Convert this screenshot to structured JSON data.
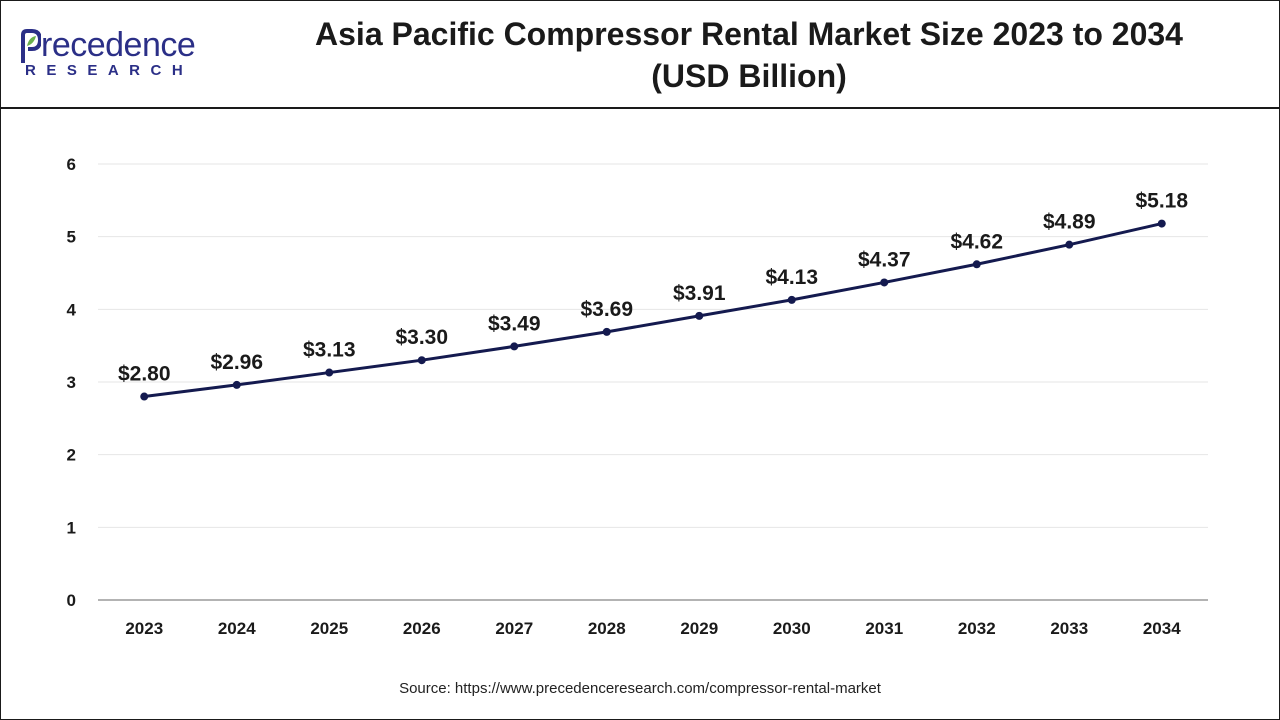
{
  "header": {
    "title_line1": "Asia Pacific Compressor Rental Market Size 2023 to 2034",
    "title_line2": "(USD Billion)"
  },
  "logo": {
    "main": "recedence",
    "initial": "P",
    "sub": "RESEARCH",
    "icon": "leaf-icon"
  },
  "source": "Source: https://www.precedenceresearch.com/compressor-rental-market",
  "colors": {
    "line": "#141a4f",
    "grid": "#e6e6e6",
    "axis": "#9a9a9a",
    "brand": "#2b2f87"
  },
  "chart_data": {
    "type": "line",
    "title": "Asia Pacific Compressor Rental Market Size 2023 to 2034 (USD Billion)",
    "x": [
      "2023",
      "2024",
      "2025",
      "2026",
      "2027",
      "2028",
      "2029",
      "2030",
      "2031",
      "2032",
      "2033",
      "2034"
    ],
    "series": [
      {
        "values": [
          2.8,
          2.96,
          3.13,
          3.3,
          3.49,
          3.69,
          3.91,
          4.13,
          4.37,
          4.62,
          4.89,
          5.18
        ],
        "labels": [
          "$2.80",
          "$2.96",
          "$3.13",
          "$3.30",
          "$3.49",
          "$3.69",
          "$3.91",
          "$4.13",
          "$4.37",
          "$4.62",
          "$4.89",
          "$5.18"
        ]
      }
    ],
    "yticks": [
      "0",
      "1",
      "2",
      "3",
      "4",
      "5",
      "6"
    ],
    "ylim": [
      0,
      6
    ],
    "xlabel": "",
    "ylabel": "",
    "grid": true,
    "legend": "none"
  }
}
